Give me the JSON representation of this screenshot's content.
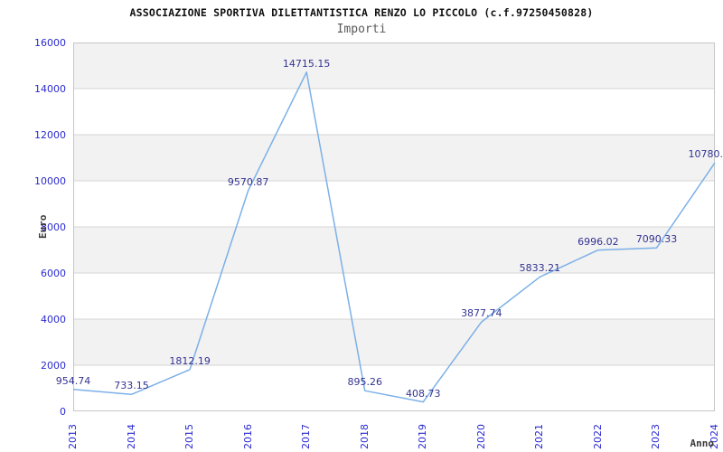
{
  "header": {
    "title": "ASSOCIAZIONE SPORTIVA DILETTANTISTICA RENZO LO PICCOLO (c.f.97250450828)",
    "subtitle": "Importi"
  },
  "chart_data": {
    "type": "line",
    "title": "ASSOCIAZIONE SPORTIVA DILETTANTISTICA RENZO LO PICCOLO (c.f.97250450828)",
    "subtitle": "Importi",
    "xlabel": "Anno",
    "ylabel": "Euro",
    "x": [
      "2013",
      "2014",
      "2015",
      "2016",
      "2017",
      "2018",
      "2019",
      "2020",
      "2021",
      "2022",
      "2023",
      "2024"
    ],
    "values": [
      954.74,
      733.15,
      1812.19,
      9570.87,
      14715.15,
      895.26,
      408.73,
      3877.74,
      5833.21,
      6996.02,
      7090.33,
      10780
    ],
    "point_labels": [
      "954.74",
      "733.15",
      "1812.19",
      "9570.87",
      "14715.15",
      "895.26",
      "408.73",
      "3877.74",
      "5833.21",
      "6996.02",
      "7090.33",
      "10780."
    ],
    "ylim": [
      0,
      16000
    ],
    "ytick_step": 2000,
    "grid": "horizontal-bands-alternating",
    "legend": "none",
    "colors": {
      "line": "#7cb0e7",
      "tick_label": "#2a2ad0",
      "value_label": "#333392",
      "band": "#f2f2f2",
      "gridline": "#d6d6d6",
      "border": "#c6c6c6",
      "title": "#111111",
      "subtitle": "#5a5a5a",
      "axis_title": "#3a3a3a",
      "background": "#ffffff"
    }
  }
}
